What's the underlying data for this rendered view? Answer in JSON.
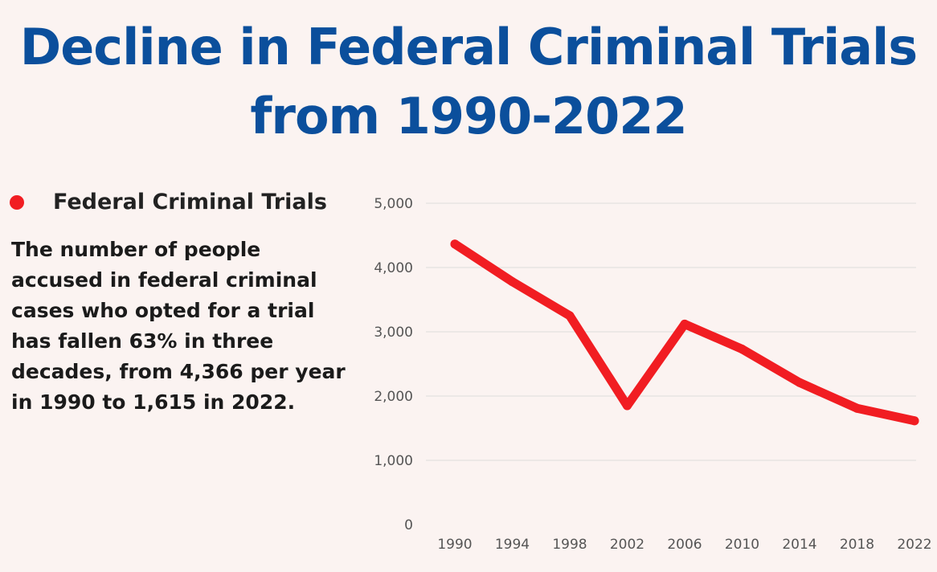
{
  "colors": {
    "title": "#0b4f9c",
    "series": "#f11d22",
    "background": "#fbf3f1",
    "grid": "#dcdcdc"
  },
  "description": "The number of people accused in federal criminal cases who opted for a trial has fallen 63% in three decades, from 4,366 per year in 1990 to 1,615 in 2022.",
  "chart_data": {
    "type": "line",
    "title_lines": [
      "Decline in Federal Criminal Trials",
      "from 1990-2022"
    ],
    "xlabel": "",
    "ylabel": "",
    "categories": [
      "1990",
      "1994",
      "1998",
      "2002",
      "2006",
      "2010",
      "2014",
      "2018",
      "2022"
    ],
    "series": [
      {
        "name": "Federal Criminal Trials",
        "values": [
          4366,
          3780,
          3250,
          1850,
          3120,
          2730,
          2210,
          1810,
          1615
        ]
      }
    ],
    "ylim": [
      0,
      5000
    ],
    "yticks": [
      0,
      1000,
      2000,
      3000,
      4000,
      5000
    ],
    "ytick_labels": [
      "0",
      "1,000",
      "2,000",
      "3,000",
      "4,000",
      "5,000"
    ],
    "grid": true,
    "legend_position": "top-left"
  }
}
